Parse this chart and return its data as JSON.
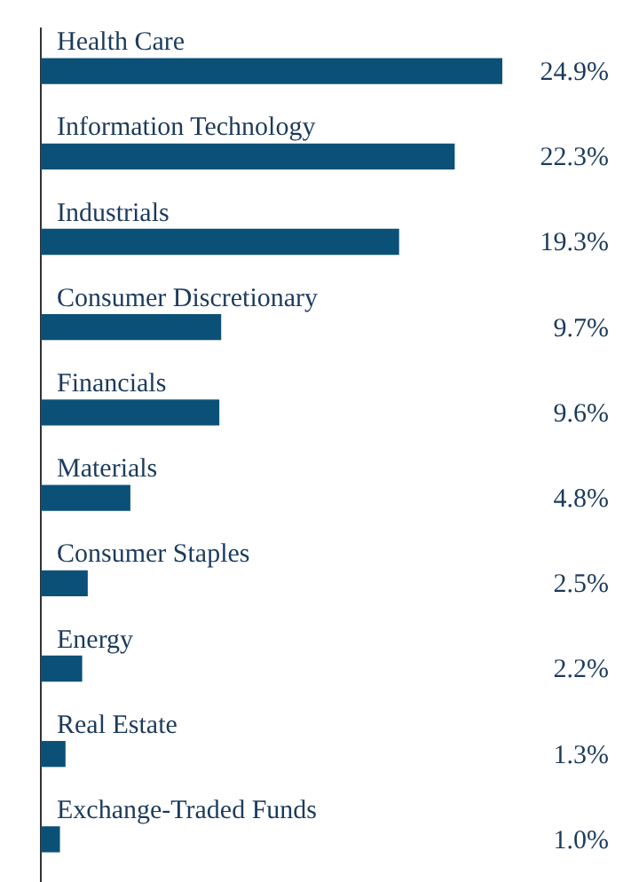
{
  "chart_data": {
    "type": "bar",
    "orientation": "horizontal",
    "categories": [
      "Health Care",
      "Information Technology",
      "Industrials",
      "Consumer Discretionary",
      "Financials",
      "Materials",
      "Consumer Staples",
      "Energy",
      "Real Estate",
      "Exchange-Traded Funds"
    ],
    "values": [
      24.9,
      22.3,
      19.3,
      9.7,
      9.6,
      4.8,
      2.5,
      2.2,
      1.3,
      1.0
    ],
    "value_labels": [
      "24.9%",
      "22.3%",
      "19.3%",
      "9.7%",
      "9.6%",
      "4.8%",
      "2.5%",
      "2.2%",
      "1.3%",
      "1.0%"
    ],
    "color": "#0b5177"
  }
}
